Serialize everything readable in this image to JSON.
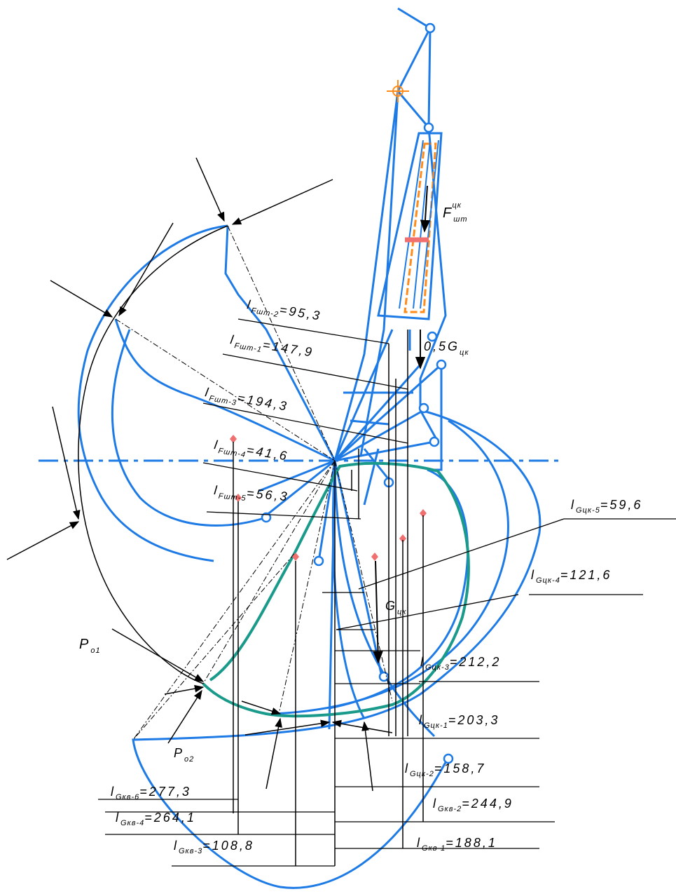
{
  "colors": {
    "outline": "#1e7be6",
    "curve": "#1a9a8a",
    "cylinder": "#ff8c1a",
    "marker": "#f07070",
    "ink": "#000000"
  },
  "labels": {
    "fsht_cyl": {
      "main": "F",
      "sub": "шт",
      "sup": "цк"
    },
    "half_g_cyl": {
      "main": "0,5G",
      "sub": "цк"
    },
    "g_cyl": {
      "main": "G",
      "sub": "цк"
    },
    "p_o1": {
      "main": "P",
      "sub": "o1"
    },
    "p_o2": {
      "main": "P",
      "sub": "o2"
    },
    "l_fsht_2": {
      "main": "l",
      "sub": "Fшт-2",
      "value": "=95,3"
    },
    "l_fsht_1": {
      "main": "l",
      "sub": "Fшт-1",
      "value": "=147,9"
    },
    "l_fsht_3": {
      "main": "l",
      "sub": "Fшт-3",
      "value": "=194,3"
    },
    "l_fsht_4": {
      "main": "l",
      "sub": "Fшт-4",
      "value": "=41,6"
    },
    "l_fsht_5": {
      "main": "l",
      "sub": "Fшт-5",
      "value": "=56,3"
    },
    "l_gcyl_5": {
      "main": "l",
      "sub": "Gцк-5",
      "value": "=59,6"
    },
    "l_gcyl_4": {
      "main": "l",
      "sub": "Gцк-4",
      "value": "=121,6"
    },
    "l_gcyl_3": {
      "main": "l",
      "sub": "Gцк-3",
      "value": "=212,2"
    },
    "l_gcyl_1": {
      "main": "l",
      "sub": "Gцк-1",
      "value": "=203,3"
    },
    "l_gcyl_2": {
      "main": "l",
      "sub": "Gцк-2",
      "value": "=158,7"
    },
    "l_gks_6": {
      "main": "l",
      "sub": "Gкв-6",
      "value": "=277,3"
    },
    "l_gks_4": {
      "main": "l",
      "sub": "Gкв-4",
      "value": "=264,1"
    },
    "l_gks_3": {
      "main": "l",
      "sub": "Gкв-3",
      "value": "=108,8"
    },
    "l_gks_2": {
      "main": "l",
      "sub": "Gкв-2",
      "value": "=244,9"
    },
    "l_gks_1": {
      "main": "l",
      "sub": "Gкв-1",
      "value": "=188,1"
    }
  }
}
